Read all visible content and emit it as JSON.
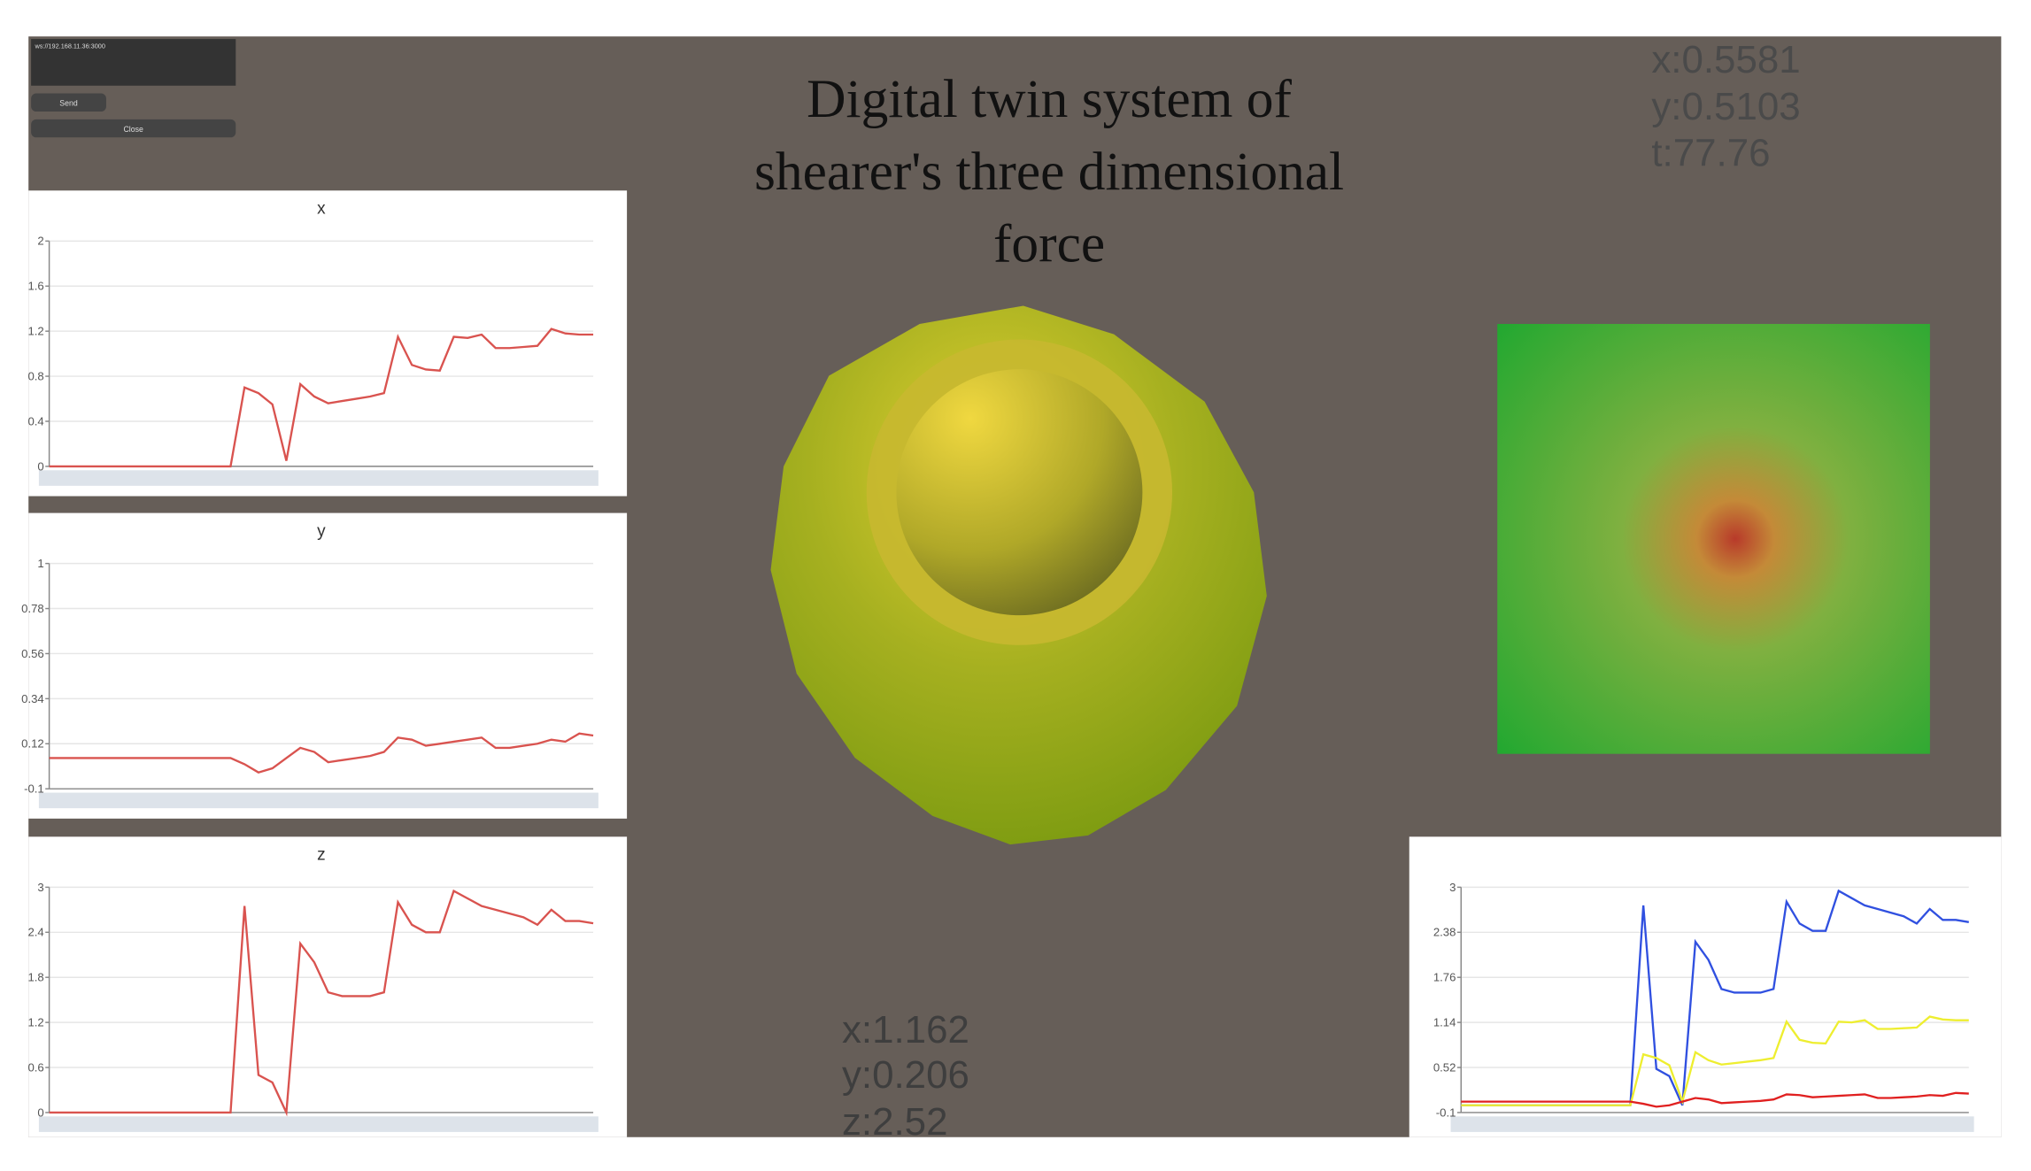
{
  "connection": {
    "address": "ws://192.168.11.36:3000",
    "send_button": "Send",
    "close_button": "Close"
  },
  "title_lines": [
    "Digital twin system of",
    "shearer's three dimensional",
    "force"
  ],
  "readout_top": [
    "x:0.5581",
    "y:0.5103",
    "t:77.76"
  ],
  "readout_bottom": [
    "x:1.162",
    "y:0.206",
    "z:2.52"
  ],
  "chart_data": [
    {
      "type": "line",
      "title": "x",
      "ylim": [
        0,
        2
      ],
      "yticks": [
        0,
        0.4,
        0.8,
        1.2,
        1.6,
        2
      ],
      "grid": true,
      "series": [
        {
          "color": "#d9534f",
          "values": [
            0,
            0,
            0,
            0,
            0,
            0,
            0,
            0,
            0,
            0,
            0,
            0,
            0,
            0,
            0.7,
            0.65,
            0.55,
            0.05,
            0.73,
            0.62,
            0.56,
            0.58,
            0.6,
            0.62,
            0.65,
            1.15,
            0.9,
            0.86,
            0.85,
            1.15,
            1.14,
            1.17,
            1.05,
            1.05,
            1.06,
            1.07,
            1.22,
            1.18,
            1.17,
            1.17
          ]
        }
      ]
    },
    {
      "type": "line",
      "title": "y",
      "ylim": [
        -0.1,
        1
      ],
      "yticks": [
        -0.1,
        0.12,
        0.34,
        0.56,
        0.78,
        1
      ],
      "grid": true,
      "series": [
        {
          "color": "#d9534f",
          "values": [
            0.05,
            0.05,
            0.05,
            0.05,
            0.05,
            0.05,
            0.05,
            0.05,
            0.05,
            0.05,
            0.05,
            0.05,
            0.05,
            0.05,
            0.02,
            -0.02,
            0,
            0.05,
            0.1,
            0.08,
            0.03,
            0.04,
            0.05,
            0.06,
            0.08,
            0.15,
            0.14,
            0.11,
            0.12,
            0.13,
            0.14,
            0.15,
            0.1,
            0.1,
            0.11,
            0.12,
            0.14,
            0.13,
            0.17,
            0.16
          ]
        }
      ]
    },
    {
      "type": "line",
      "title": "z",
      "ylim": [
        0,
        3
      ],
      "yticks": [
        0,
        0.6,
        1.2,
        1.8,
        2.4,
        3
      ],
      "grid": true,
      "series": [
        {
          "color": "#d9534f",
          "values": [
            0,
            0,
            0,
            0,
            0,
            0,
            0,
            0,
            0,
            0,
            0,
            0,
            0,
            0,
            2.75,
            0.5,
            0.4,
            0,
            2.25,
            2,
            1.6,
            1.55,
            1.55,
            1.55,
            1.6,
            2.8,
            2.5,
            2.4,
            2.4,
            2.95,
            2.85,
            2.75,
            2.7,
            2.65,
            2.6,
            2.5,
            2.7,
            2.55,
            2.55,
            2.52
          ]
        }
      ]
    },
    {
      "type": "line",
      "ylim": [
        -0.1,
        3
      ],
      "yticks": [
        -0.1,
        0.52,
        1.14,
        1.76,
        2.38,
        3
      ],
      "grid": true,
      "series": [
        {
          "color": "#3050e0",
          "values": [
            0,
            0,
            0,
            0,
            0,
            0,
            0,
            0,
            0,
            0,
            0,
            0,
            0,
            0,
            2.75,
            0.5,
            0.4,
            0,
            2.25,
            2,
            1.6,
            1.55,
            1.55,
            1.55,
            1.6,
            2.8,
            2.5,
            2.4,
            2.4,
            2.95,
            2.85,
            2.75,
            2.7,
            2.65,
            2.6,
            2.5,
            2.7,
            2.55,
            2.55,
            2.52
          ]
        },
        {
          "color": "#eeee30",
          "values": [
            0,
            0,
            0,
            0,
            0,
            0,
            0,
            0,
            0,
            0,
            0,
            0,
            0,
            0,
            0.7,
            0.65,
            0.55,
            0.05,
            0.73,
            0.62,
            0.56,
            0.58,
            0.6,
            0.62,
            0.65,
            1.15,
            0.9,
            0.86,
            0.85,
            1.15,
            1.14,
            1.17,
            1.05,
            1.05,
            1.06,
            1.07,
            1.22,
            1.18,
            1.17,
            1.17
          ]
        },
        {
          "color": "#e02020",
          "values": [
            0.05,
            0.05,
            0.05,
            0.05,
            0.05,
            0.05,
            0.05,
            0.05,
            0.05,
            0.05,
            0.05,
            0.05,
            0.05,
            0.05,
            0.02,
            -0.02,
            0,
            0.05,
            0.1,
            0.08,
            0.03,
            0.04,
            0.05,
            0.06,
            0.08,
            0.15,
            0.14,
            0.11,
            0.12,
            0.13,
            0.14,
            0.15,
            0.1,
            0.1,
            0.11,
            0.12,
            0.14,
            0.13,
            0.17,
            0.16
          ]
        }
      ]
    }
  ]
}
